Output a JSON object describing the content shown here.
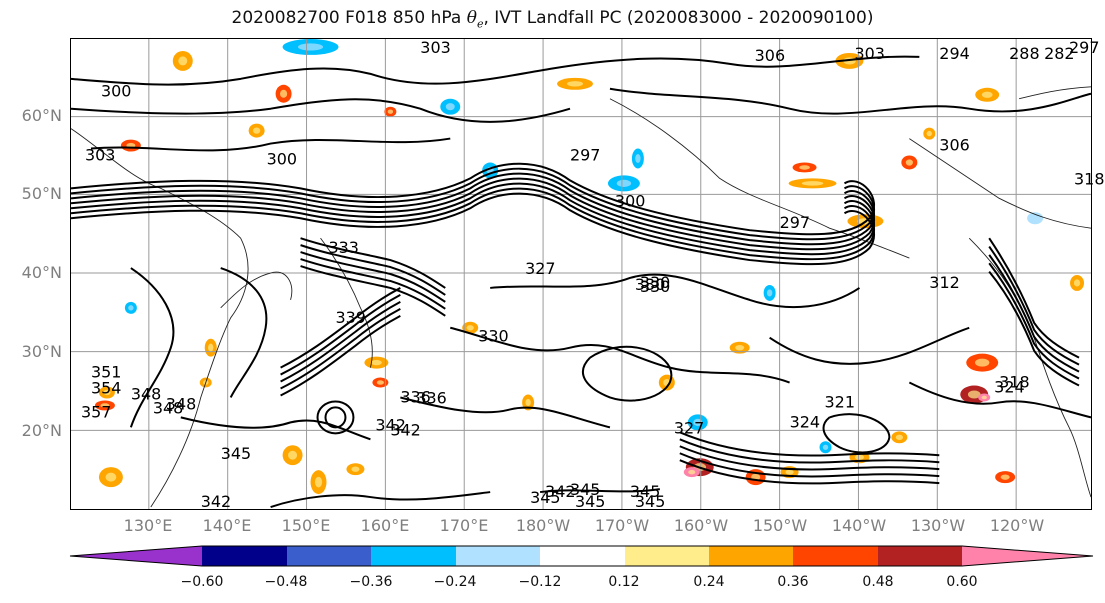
{
  "title": {
    "prefix": "2020082700 F018 850 hPa ",
    "symbol": "θ",
    "subscript": "e",
    "suffix": ", IVT Landfall PC (2020083000 - 2020090100)"
  },
  "map": {
    "lat_labels": [
      "60°N",
      "50°N",
      "40°N",
      "30°N",
      "20°N"
    ],
    "lon_labels": [
      "130°E",
      "140°E",
      "150°E",
      "160°E",
      "170°E",
      "180°W",
      "170°W",
      "160°W",
      "150°W",
      "140°W",
      "130°W",
      "120°W"
    ],
    "contour_labels": [
      "300",
      "303",
      "303",
      "306",
      "303",
      "294",
      "288",
      "282",
      "297",
      "297",
      "300",
      "300",
      "297",
      "306",
      "318",
      "327",
      "330",
      "330",
      "336",
      "339",
      "342",
      "342",
      "345",
      "348",
      "348",
      "345",
      "336",
      "330",
      "327",
      "324",
      "321",
      "318",
      "312",
      "345",
      "342",
      "345",
      "351",
      "354",
      "357",
      "348",
      "330",
      "333",
      "345",
      "324",
      "342",
      "345"
    ]
  },
  "colorbar": {
    "colors": [
      "#9932cc",
      "#00008b",
      "#3a5fcd",
      "#00bfff",
      "#b0e2ff",
      "#ffffff",
      "#ffec8b",
      "#ffa500",
      "#ff4500",
      "#b22222",
      "#ff82ab"
    ],
    "ticks": [
      "−0.60",
      "−0.48",
      "−0.36",
      "−0.24",
      "−0.12",
      "0.12",
      "0.24",
      "0.36",
      "0.48",
      "0.60"
    ]
  }
}
